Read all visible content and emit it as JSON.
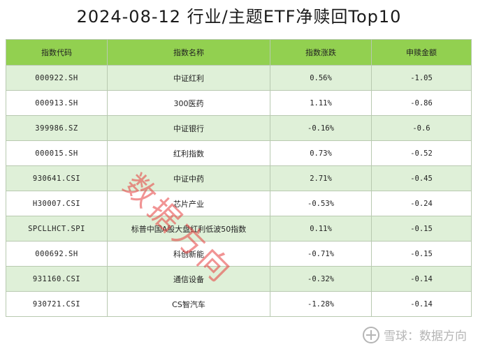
{
  "title": "2024-08-12 行业/主题ETF净赎回Top10",
  "columns": [
    "指数代码",
    "指数名称",
    "指数涨跌",
    "申赎金额"
  ],
  "rows": [
    [
      "000922.SH",
      "中证红利",
      "0.56%",
      "-1.05"
    ],
    [
      "000913.SH",
      "300医药",
      "1.11%",
      "-0.86"
    ],
    [
      "399986.SZ",
      "中证银行",
      "-0.16%",
      "-0.6"
    ],
    [
      "000015.SH",
      "红利指数",
      "0.73%",
      "-0.52"
    ],
    [
      "930641.CSI",
      "中证中药",
      "2.71%",
      "-0.45"
    ],
    [
      "H30007.CSI",
      "芯片产业",
      "-0.53%",
      "-0.24"
    ],
    [
      "SPCLLHCT.SPI",
      "标普中国A股大盘红利低波50指数",
      "0.11%",
      "-0.15"
    ],
    [
      "000692.SH",
      "科创新能",
      "-0.71%",
      "-0.15"
    ],
    [
      "931160.CSI",
      "通信设备",
      "-0.32%",
      "-0.14"
    ],
    [
      "930721.CSI",
      "CS智汽车",
      "-1.28%",
      "-0.14"
    ]
  ],
  "watermark": "数据方向",
  "footer": {
    "icon": "snowball-icon",
    "text": "雪球：数据方向"
  },
  "colors": {
    "header_bg": "#92d050",
    "row_alt_bg": "#dff0d8",
    "watermark": "#e63c3c"
  }
}
